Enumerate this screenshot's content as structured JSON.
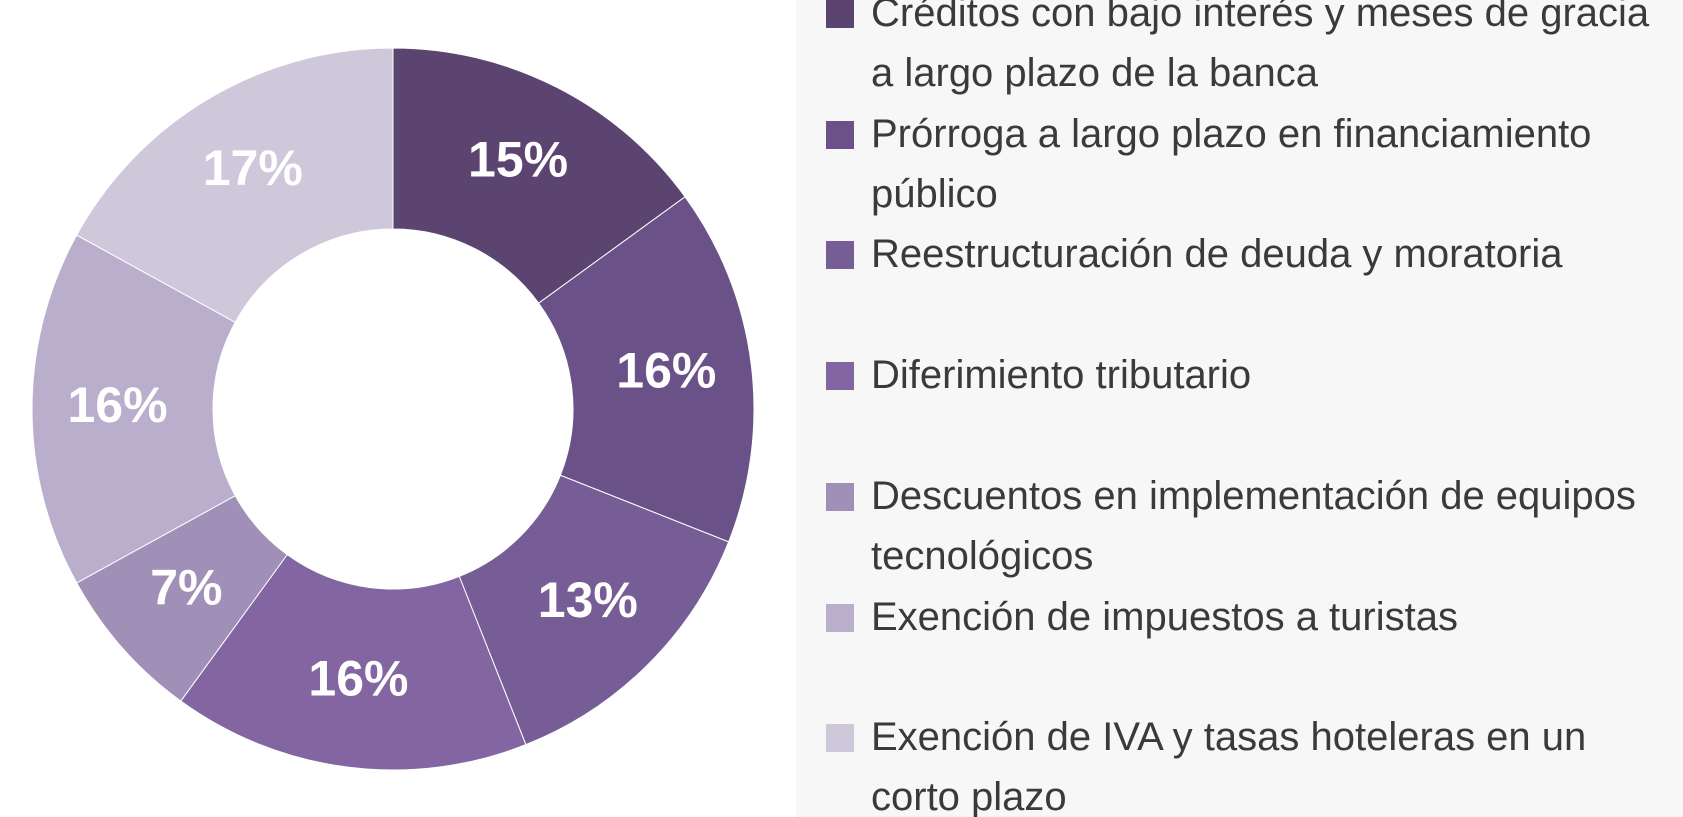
{
  "chart_data": {
    "type": "donut",
    "categories": [
      "Créditos con bajo interés y  meses de gracia a largo plazo de la banca",
      "Prórroga a largo plazo en financiamiento público",
      "Reestructuración de deuda y moratoria",
      "Diferimiento tributario",
      "Descuentos en implementación de equipos tecnológicos",
      "Exención de impuestos a turistas",
      "Exención de IVA y tasas  hoteleras en un corto plazo"
    ],
    "values": [
      15,
      16,
      13,
      16,
      7,
      16,
      17
    ],
    "value_labels": [
      "15%",
      "16%",
      "13%",
      "16%",
      "7%",
      "16%",
      "17%"
    ],
    "colors": [
      "#5b4470",
      "#6a5187",
      "#765d96",
      "#8265a1",
      "#a090b8",
      "#b9aecb",
      "#cfc7da"
    ]
  }
}
